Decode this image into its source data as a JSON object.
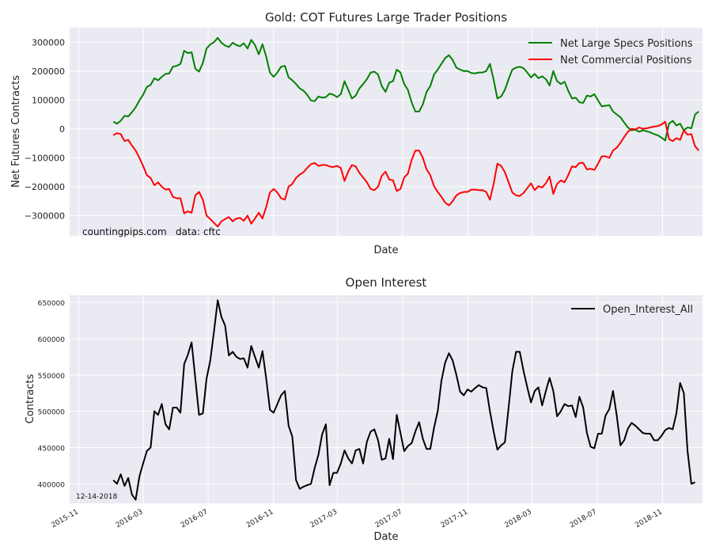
{
  "chart_data": [
    {
      "type": "line",
      "title": "Gold: COT Futures Large Trader Positions",
      "xlabel": "Date",
      "ylabel": "Net Futures Contracts",
      "ylim": [
        -370000,
        350000
      ],
      "yticks": [
        -300000,
        -200000,
        -100000,
        0,
        100000,
        200000,
        300000
      ],
      "ytick_labels": [
        "−300000",
        "−200000",
        "−100000",
        "0",
        "100000",
        "200000",
        "300000"
      ],
      "x_start": "2016-01-05",
      "x_step_days": 7,
      "legend_position": "top-right",
      "annotations": [
        "countingpips.com",
        "data: cftc"
      ],
      "series": [
        {
          "name": "Net Large Specs Positions",
          "color": "#008000",
          "values": [
            25000,
            18000,
            28000,
            45000,
            43000,
            58000,
            75000,
            98000,
            118000,
            145000,
            152000,
            175000,
            168000,
            180000,
            190000,
            192000,
            215000,
            218000,
            225000,
            270000,
            262000,
            265000,
            208000,
            198000,
            228000,
            278000,
            292000,
            300000,
            315000,
            298000,
            288000,
            283000,
            298000,
            290000,
            286000,
            296000,
            278000,
            308000,
            290000,
            258000,
            293000,
            250000,
            195000,
            180000,
            195000,
            215000,
            218000,
            178000,
            168000,
            155000,
            140000,
            132000,
            118000,
            98000,
            96000,
            112000,
            108000,
            110000,
            122000,
            118000,
            110000,
            120000,
            165000,
            135000,
            105000,
            115000,
            140000,
            155000,
            172000,
            195000,
            198000,
            188000,
            148000,
            128000,
            160000,
            165000,
            205000,
            195000,
            155000,
            135000,
            92000,
            60000,
            60000,
            85000,
            128000,
            148000,
            188000,
            205000,
            225000,
            245000,
            255000,
            238000,
            212000,
            205000,
            200000,
            200000,
            193000,
            192000,
            195000,
            195000,
            200000,
            225000,
            170000,
            105000,
            112000,
            135000,
            172000,
            205000,
            212000,
            215000,
            210000,
            195000,
            178000,
            190000,
            175000,
            182000,
            172000,
            150000,
            200000,
            165000,
            155000,
            163000,
            132000,
            105000,
            108000,
            92000,
            90000,
            115000,
            112000,
            120000,
            98000,
            78000,
            80000,
            82000,
            60000,
            50000,
            40000,
            22000,
            5000,
            -5000,
            -3000,
            -10000,
            -5000,
            -8000,
            -12000,
            -18000,
            -22000,
            -30000,
            -40000,
            18000,
            28000,
            12000,
            18000,
            -5000,
            5000,
            2000,
            50000,
            60000
          ]
        },
        {
          "name": "Net Commercial Positions",
          "color": "#ff0000",
          "values": [
            -22000,
            -15000,
            -18000,
            -42000,
            -38000,
            -58000,
            -75000,
            -100000,
            -128000,
            -160000,
            -170000,
            -195000,
            -185000,
            -200000,
            -210000,
            -208000,
            -235000,
            -240000,
            -240000,
            -292000,
            -285000,
            -290000,
            -230000,
            -218000,
            -245000,
            -300000,
            -312000,
            -325000,
            -338000,
            -320000,
            -312000,
            -305000,
            -320000,
            -310000,
            -308000,
            -318000,
            -300000,
            -328000,
            -310000,
            -290000,
            -310000,
            -270000,
            -220000,
            -208000,
            -220000,
            -240000,
            -245000,
            -200000,
            -190000,
            -170000,
            -158000,
            -150000,
            -135000,
            -122000,
            -118000,
            -128000,
            -125000,
            -125000,
            -130000,
            -132000,
            -128000,
            -135000,
            -180000,
            -148000,
            -125000,
            -130000,
            -152000,
            -168000,
            -185000,
            -208000,
            -212000,
            -200000,
            -162000,
            -148000,
            -175000,
            -178000,
            -215000,
            -208000,
            -168000,
            -155000,
            -108000,
            -75000,
            -75000,
            -100000,
            -140000,
            -160000,
            -198000,
            -218000,
            -235000,
            -255000,
            -265000,
            -250000,
            -230000,
            -222000,
            -218000,
            -218000,
            -210000,
            -210000,
            -212000,
            -212000,
            -218000,
            -245000,
            -190000,
            -120000,
            -128000,
            -150000,
            -185000,
            -220000,
            -230000,
            -232000,
            -222000,
            -205000,
            -188000,
            -212000,
            -198000,
            -203000,
            -188000,
            -165000,
            -225000,
            -190000,
            -178000,
            -185000,
            -160000,
            -130000,
            -132000,
            -118000,
            -118000,
            -140000,
            -138000,
            -142000,
            -120000,
            -95000,
            -95000,
            -100000,
            -75000,
            -65000,
            -48000,
            -28000,
            -10000,
            0,
            -2000,
            5000,
            0,
            2000,
            5000,
            8000,
            10000,
            15000,
            25000,
            -35000,
            -42000,
            -32000,
            -38000,
            -5000,
            -20000,
            -18000,
            -60000,
            -75000
          ]
        }
      ]
    },
    {
      "type": "line",
      "title": "Open Interest",
      "xlabel": "Date",
      "ylabel": "Contracts",
      "ylim": [
        373000,
        660000
      ],
      "yticks": [
        400000,
        450000,
        500000,
        550000,
        600000,
        650000
      ],
      "ytick_labels": [
        "400000",
        "450000",
        "500000",
        "550000",
        "600000",
        "650000"
      ],
      "xticks": [
        "2015-11",
        "2016-03",
        "2016-07",
        "2016-11",
        "2017-03",
        "2017-07",
        "2017-11",
        "2018-03",
        "2018-07",
        "2018-11"
      ],
      "x_start": "2016-01-05",
      "x_step_days": 7,
      "legend_position": "top-right",
      "annotations": [
        "12-14-2018"
      ],
      "series": [
        {
          "name": "Open_Interest_All",
          "color": "#000000",
          "values": [
            405000,
            400000,
            413000,
            397000,
            408000,
            385000,
            378000,
            410000,
            428000,
            445000,
            450000,
            500000,
            495000,
            510000,
            482000,
            475000,
            505000,
            505000,
            498000,
            565000,
            578000,
            595000,
            545000,
            495000,
            497000,
            545000,
            570000,
            610000,
            653000,
            630000,
            618000,
            577000,
            582000,
            575000,
            572000,
            573000,
            560000,
            590000,
            575000,
            560000,
            583000,
            545000,
            502000,
            498000,
            510000,
            522000,
            528000,
            480000,
            465000,
            405000,
            393000,
            396000,
            398000,
            400000,
            422000,
            440000,
            468000,
            482000,
            398000,
            415000,
            415000,
            428000,
            446000,
            435000,
            428000,
            446000,
            448000,
            428000,
            458000,
            472000,
            475000,
            460000,
            433000,
            435000,
            462000,
            434000,
            495000,
            470000,
            445000,
            452000,
            456000,
            472000,
            485000,
            462000,
            448000,
            448000,
            477000,
            500000,
            542000,
            567000,
            580000,
            570000,
            550000,
            527000,
            522000,
            530000,
            527000,
            532000,
            536000,
            533000,
            532000,
            500000,
            472000,
            447000,
            453000,
            457000,
            505000,
            555000,
            582000,
            582000,
            556000,
            533000,
            512000,
            528000,
            533000,
            508000,
            528000,
            546000,
            528000,
            493000,
            500000,
            510000,
            507000,
            508000,
            492000,
            520000,
            505000,
            470000,
            451000,
            449000,
            469000,
            469000,
            494000,
            503000,
            528000,
            494000,
            453000,
            460000,
            476000,
            484000,
            480000,
            475000,
            470000,
            469000,
            469000,
            460000,
            460000,
            466000,
            474000,
            477000,
            475000,
            497000,
            539000,
            525000,
            445000,
            400000,
            402000
          ]
        }
      ]
    }
  ]
}
